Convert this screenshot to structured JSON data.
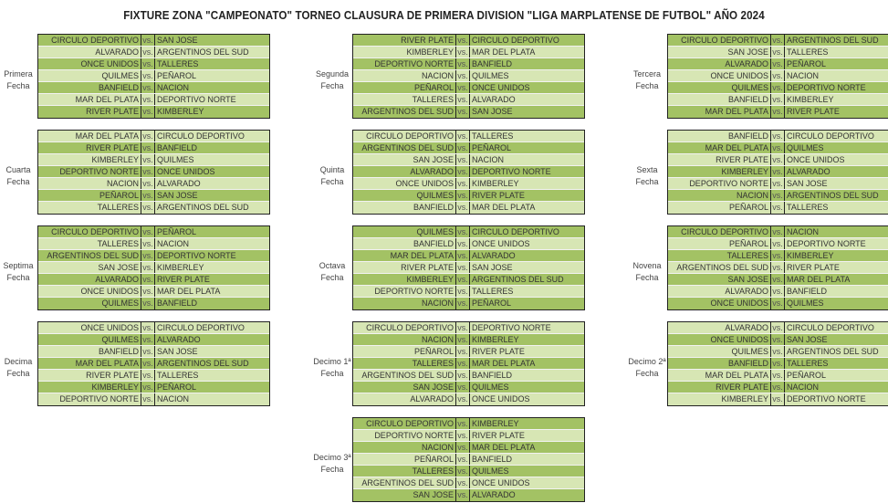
{
  "title": "FIXTURE ZONA \"CAMPEONATO\" TORNEO CLAUSURA DE PRIMERA DIVISION \"LIGA MARPLATENSE DE FUTBOL\" AÑO 2024",
  "colors": {
    "dark_row": "#a3c264",
    "light_row": "#d7e6b4",
    "border": "#222222"
  },
  "vs_label": "vs.",
  "fechas": [
    {
      "label1": "Primera",
      "label2": "Fecha",
      "start": "dark",
      "matches": [
        [
          "CIRCULO DEPORTIVO",
          "SAN JOSE"
        ],
        [
          "ALVARADO",
          "ARGENTINOS DEL SUD"
        ],
        [
          "ONCE UNIDOS",
          "TALLERES"
        ],
        [
          "QUILMES",
          "PEÑAROL"
        ],
        [
          "BANFIELD",
          "NACION"
        ],
        [
          "MAR DEL PLATA",
          "DEPORTIVO NORTE"
        ],
        [
          "RIVER PLATE",
          "KIMBERLEY"
        ]
      ]
    },
    {
      "label1": "Segunda",
      "label2": "Fecha",
      "start": "dark",
      "matches": [
        [
          "RIVER PLATE",
          "CIRCULO DEPORTIVO"
        ],
        [
          "KIMBERLEY",
          "MAR DEL PLATA"
        ],
        [
          "DEPORTIVO NORTE",
          "BANFIELD"
        ],
        [
          "NACION",
          "QUILMES"
        ],
        [
          "PEÑAROL",
          "ONCE UNIDOS"
        ],
        [
          "TALLERES",
          "ALVARADO"
        ],
        [
          "ARGENTINOS DEL SUD",
          "SAN JOSE"
        ]
      ]
    },
    {
      "label1": "Tercera",
      "label2": "Fecha",
      "start": "dark",
      "matches": [
        [
          "CIRCULO DEPORTIVO",
          "ARGENTINOS DEL SUD"
        ],
        [
          "SAN JOSE",
          "TALLERES"
        ],
        [
          "ALVARADO",
          "PEÑAROL"
        ],
        [
          "ONCE UNIDOS",
          "NACION"
        ],
        [
          "QUILMES",
          "DEPORTIVO NORTE"
        ],
        [
          "BANFIELD",
          "KIMBERLEY"
        ],
        [
          "MAR DEL PLATA",
          "RIVER PLATE"
        ]
      ]
    },
    {
      "label1": "Cuarta",
      "label2": "Fecha",
      "start": "light",
      "matches": [
        [
          "MAR DEL PLATA",
          "CIRCULO DEPORTIVO"
        ],
        [
          "RIVER PLATE",
          "BANFIELD"
        ],
        [
          "KIMBERLEY",
          "QUILMES"
        ],
        [
          "DEPORTIVO NORTE",
          "ONCE UNIDOS"
        ],
        [
          "NACION",
          "ALVARADO"
        ],
        [
          "PEÑAROL",
          "SAN JOSE"
        ],
        [
          "TALLERES",
          "ARGENTINOS DEL SUD"
        ]
      ]
    },
    {
      "label1": "Quinta",
      "label2": "Fecha",
      "start": "light",
      "matches": [
        [
          "CIRCULO DEPORTIVO",
          "TALLERES"
        ],
        [
          "ARGENTINOS DEL SUD",
          "PEÑAROL"
        ],
        [
          "SAN JOSE",
          "NACION"
        ],
        [
          "ALVARADO",
          "DEPORTIVO NORTE"
        ],
        [
          "ONCE UNIDOS",
          "KIMBERLEY"
        ],
        [
          "QUILMES",
          "RIVER PLATE"
        ],
        [
          "BANFIELD",
          "MAR DEL PLATA"
        ]
      ]
    },
    {
      "label1": "Sexta",
      "label2": "Fecha",
      "start": "light",
      "matches": [
        [
          "BANFIELD",
          "CIRCULO DEPORTIVO"
        ],
        [
          "MAR DEL PLATA",
          "QUILMES"
        ],
        [
          "RIVER PLATE",
          "ONCE UNIDOS"
        ],
        [
          "KIMBERLEY",
          "ALVARADO"
        ],
        [
          "DEPORTIVO NORTE",
          "SAN JOSE"
        ],
        [
          "NACION",
          "ARGENTINOS DEL SUD"
        ],
        [
          "PEÑAROL",
          "TALLERES"
        ]
      ]
    },
    {
      "label1": "Septima",
      "label2": "Fecha",
      "start": "dark",
      "matches": [
        [
          "CIRCULO DEPORTIVO",
          "PEÑAROL"
        ],
        [
          "TALLERES",
          "NACION"
        ],
        [
          "ARGENTINOS DEL SUD",
          "DEPORTIVO NORTE"
        ],
        [
          "SAN JOSE",
          "KIMBERLEY"
        ],
        [
          "ALVARADO",
          "RIVER PLATE"
        ],
        [
          "ONCE UNIDOS",
          "MAR DEL PLATA"
        ],
        [
          "QUILMES",
          "BANFIELD"
        ]
      ]
    },
    {
      "label1": "Octava",
      "label2": "Fecha",
      "start": "dark",
      "matches": [
        [
          "QUILMES",
          "CIRCULO DEPORTIVO"
        ],
        [
          "BANFIELD",
          "ONCE UNIDOS"
        ],
        [
          "MAR DEL PLATA",
          "ALVARADO"
        ],
        [
          "RIVER PLATE",
          "SAN JOSE"
        ],
        [
          "KIMBERLEY",
          "ARGENTINOS DEL SUD"
        ],
        [
          "DEPORTIVO NORTE",
          "TALLERES"
        ],
        [
          "NACION",
          "PEÑAROL"
        ]
      ]
    },
    {
      "label1": "Novena",
      "label2": "Fecha",
      "start": "dark",
      "matches": [
        [
          "CIRCULO DEPORTIVO",
          "NACION"
        ],
        [
          "PEÑAROL",
          "DEPORTIVO NORTE"
        ],
        [
          "TALLERES",
          "KIMBERLEY"
        ],
        [
          "ARGENTINOS DEL SUD",
          "RIVER PLATE"
        ],
        [
          "SAN JOSE",
          "MAR DEL PLATA"
        ],
        [
          "ALVARADO",
          "BANFIELD"
        ],
        [
          "ONCE UNIDOS",
          "QUILMES"
        ]
      ]
    },
    {
      "label1": "Decima",
      "label2": "Fecha",
      "start": "light",
      "matches": [
        [
          "ONCE UNIDOS",
          "CIRCULO DEPORTIVO"
        ],
        [
          "QUILMES",
          "ALVARADO"
        ],
        [
          "BANFIELD",
          "SAN JOSE"
        ],
        [
          "MAR DEL PLATA",
          "ARGENTINOS DEL SUD"
        ],
        [
          "RIVER PLATE",
          "TALLERES"
        ],
        [
          "KIMBERLEY",
          "PEÑAROL"
        ],
        [
          "DEPORTIVO NORTE",
          "NACION"
        ]
      ]
    },
    {
      "label1": "Decimo 1ª",
      "label2": "Fecha",
      "start": "light",
      "matches": [
        [
          "CIRCULO DEPORTIVO",
          "DEPORTIVO NORTE"
        ],
        [
          "NACION",
          "KIMBERLEY"
        ],
        [
          "PEÑAROL",
          "RIVER PLATE"
        ],
        [
          "TALLERES",
          "MAR DEL PLATA"
        ],
        [
          "ARGENTINOS DEL SUD",
          "BANFIELD"
        ],
        [
          "SAN JOSE",
          "QUILMES"
        ],
        [
          "ALVARADO",
          "ONCE UNIDOS"
        ]
      ]
    },
    {
      "label1": "Decimo 2ª",
      "label2": "Fecha",
      "start": "light",
      "matches": [
        [
          "ALVARADO",
          "CIRCULO DEPORTIVO"
        ],
        [
          "ONCE UNIDOS",
          "SAN JOSE"
        ],
        [
          "QUILMES",
          "ARGENTINOS DEL SUD"
        ],
        [
          "BANFIELD",
          "TALLERES"
        ],
        [
          "MAR DEL PLATA",
          "PEÑAROL"
        ],
        [
          "RIVER PLATE",
          "NACION"
        ],
        [
          "KIMBERLEY",
          "DEPORTIVO NORTE"
        ]
      ]
    },
    {
      "label1": "Decimo 3ª",
      "label2": "Fecha",
      "start": "dark",
      "matches": [
        [
          "CIRCULO DEPORTIVO",
          "KIMBERLEY"
        ],
        [
          "DEPORTIVO NORTE",
          "RIVER PLATE"
        ],
        [
          "NACION",
          "MAR DEL PLATA"
        ],
        [
          "PEÑAROL",
          "BANFIELD"
        ],
        [
          "TALLERES",
          "QUILMES"
        ],
        [
          "ARGENTINOS DEL SUD",
          "ONCE UNIDOS"
        ],
        [
          "SAN JOSE",
          "ALVARADO"
        ]
      ]
    }
  ]
}
